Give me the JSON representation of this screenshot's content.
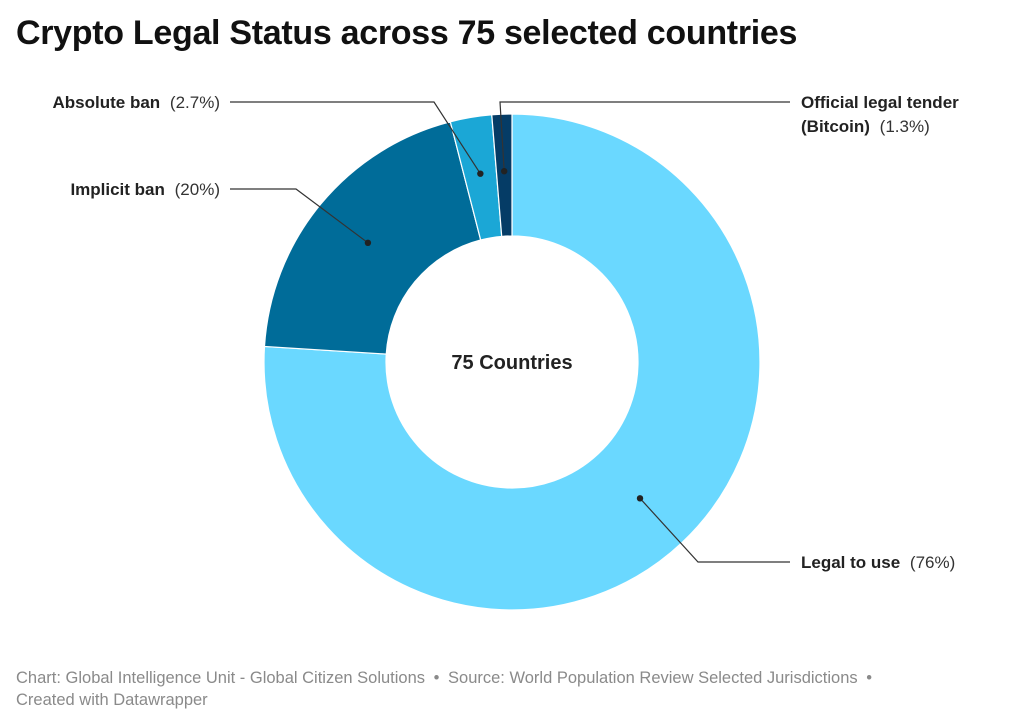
{
  "title": "Crypto Legal Status across 75 selected countries",
  "center_label": "75 Countries",
  "chart_data": {
    "type": "pie",
    "donut": true,
    "title": "Crypto Legal Status across 75 selected countries",
    "total_label": "75 Countries",
    "slices": [
      {
        "label": "Legal to use",
        "value": 76,
        "pct_text": "(76%)",
        "color": "#6ad8ff"
      },
      {
        "label": "Implicit ban",
        "value": 20,
        "pct_text": "(20%)",
        "color": "#006c99"
      },
      {
        "label": "Absolute ban",
        "value": 2.7,
        "pct_text": "(2.7%)",
        "color": "#1ba7d6"
      },
      {
        "label": "Official legal tender (Bitcoin)",
        "label_lines": [
          "Official legal tender",
          "(Bitcoin)"
        ],
        "value": 1.3,
        "pct_text": "(1.3%)",
        "color": "#053c66"
      }
    ]
  },
  "footer": {
    "chart_credit": "Chart: Global Intelligence Unit - Global Citizen Solutions",
    "source": "Source: World Population Review Selected Jurisdictions",
    "created": "Created with Datawrapper",
    "separator": "•"
  }
}
